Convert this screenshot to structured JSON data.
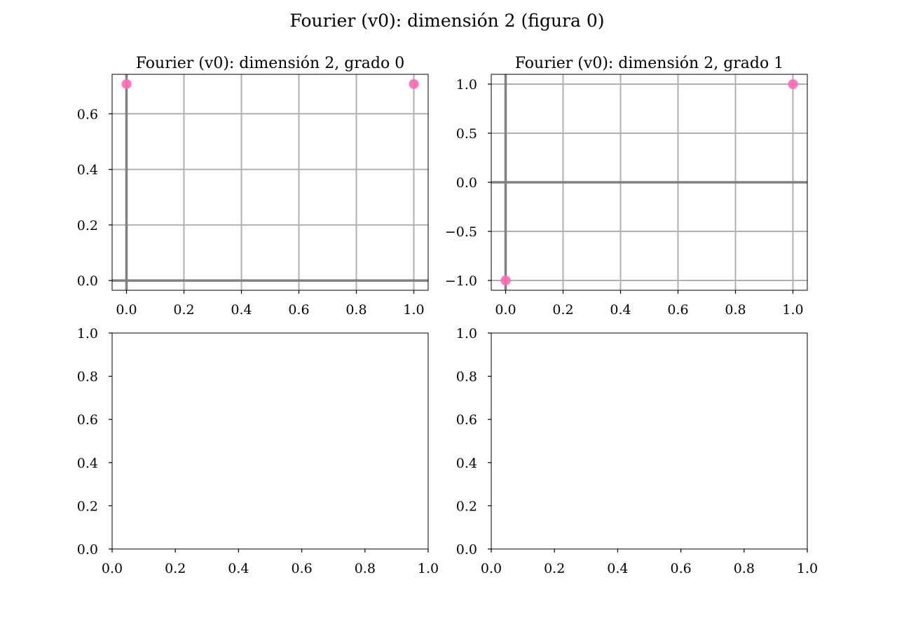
{
  "figure": {
    "title": "Fourier (v0): dimensión 2 (figura 0)"
  },
  "colors": {
    "point": "#ff69b4",
    "grid": "#b0b0b0",
    "zero_line": "#808080",
    "axis": "#000000"
  },
  "chart_data": [
    {
      "type": "scatter",
      "title": "Fourier (v0): dimensión 2, grado 0",
      "xlabel": "",
      "ylabel": "",
      "xlim": [
        -0.05,
        1.05
      ],
      "ylim": [
        -0.035,
        0.742
      ],
      "xticks": [
        0.0,
        0.2,
        0.4,
        0.6,
        0.8,
        1.0
      ],
      "yticks": [
        0.0,
        0.2,
        0.4,
        0.6
      ],
      "xtick_labels": [
        "0.0",
        "0.2",
        "0.4",
        "0.6",
        "0.8",
        "1.0"
      ],
      "ytick_labels": [
        "0.0",
        "0.2",
        "0.4",
        "0.6"
      ],
      "grid": true,
      "zero_lines": true,
      "series": [
        {
          "x": [
            0.0,
            1.0
          ],
          "y": [
            0.7071,
            0.7071
          ]
        }
      ]
    },
    {
      "type": "scatter",
      "title": "Fourier (v0): dimensión 2, grado 1",
      "xlabel": "",
      "ylabel": "",
      "xlim": [
        -0.05,
        1.05
      ],
      "ylim": [
        -1.1,
        1.1
      ],
      "xticks": [
        0.0,
        0.2,
        0.4,
        0.6,
        0.8,
        1.0
      ],
      "yticks": [
        -1.0,
        -0.5,
        0.0,
        0.5,
        1.0
      ],
      "xtick_labels": [
        "0.0",
        "0.2",
        "0.4",
        "0.6",
        "0.8",
        "1.0"
      ],
      "ytick_labels": [
        "−1.0",
        "−0.5",
        "0.0",
        "0.5",
        "1.0"
      ],
      "grid": true,
      "zero_lines": true,
      "series": [
        {
          "x": [
            0.0,
            1.0
          ],
          "y": [
            -1.0,
            1.0
          ]
        }
      ]
    },
    {
      "type": "scatter",
      "title": "",
      "xlabel": "",
      "ylabel": "",
      "xlim": [
        0.0,
        1.0
      ],
      "ylim": [
        0.0,
        1.0
      ],
      "xticks": [
        0.0,
        0.2,
        0.4,
        0.6,
        0.8,
        1.0
      ],
      "yticks": [
        0.0,
        0.2,
        0.4,
        0.6,
        0.8,
        1.0
      ],
      "xtick_labels": [
        "0.0",
        "0.2",
        "0.4",
        "0.6",
        "0.8",
        "1.0"
      ],
      "ytick_labels": [
        "0.0",
        "0.2",
        "0.4",
        "0.6",
        "0.8",
        "1.0"
      ],
      "grid": false,
      "zero_lines": false,
      "series": []
    },
    {
      "type": "scatter",
      "title": "",
      "xlabel": "",
      "ylabel": "",
      "xlim": [
        0.0,
        1.0
      ],
      "ylim": [
        0.0,
        1.0
      ],
      "xticks": [
        0.0,
        0.2,
        0.4,
        0.6,
        0.8,
        1.0
      ],
      "yticks": [
        0.0,
        0.2,
        0.4,
        0.6,
        0.8,
        1.0
      ],
      "xtick_labels": [
        "0.0",
        "0.2",
        "0.4",
        "0.6",
        "0.8",
        "1.0"
      ],
      "ytick_labels": [
        "0.0",
        "0.2",
        "0.4",
        "0.6",
        "0.8",
        "1.0"
      ],
      "grid": false,
      "zero_lines": false,
      "series": []
    }
  ]
}
